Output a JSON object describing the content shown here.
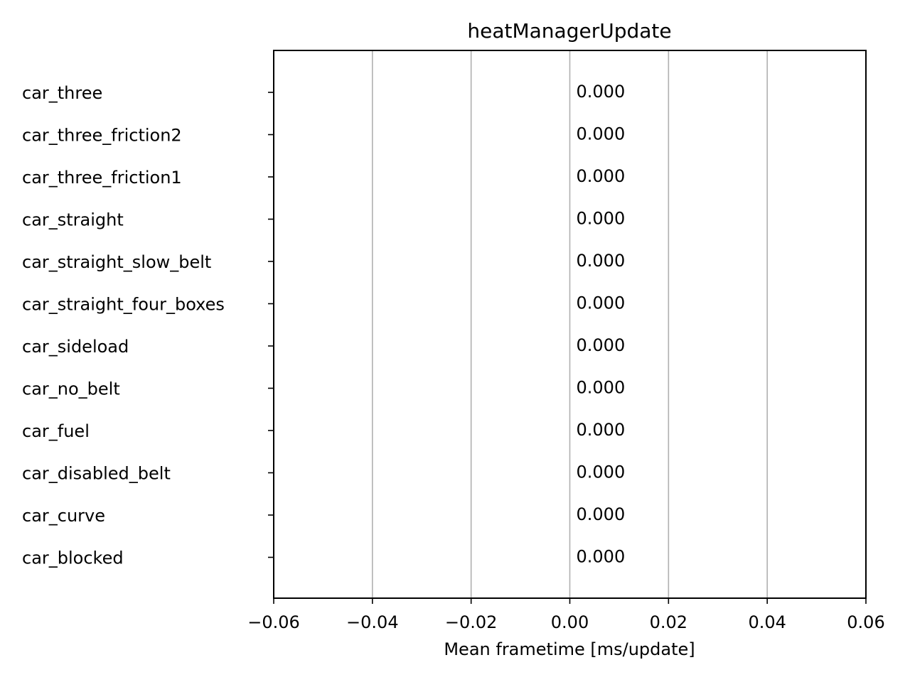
{
  "chart_data": {
    "type": "bar",
    "orientation": "horizontal",
    "title": "heatManagerUpdate",
    "xlabel": "Mean frametime [ms/update]",
    "ylabel": "",
    "xlim": [
      -0.06,
      0.06
    ],
    "x_ticks": [
      -0.06,
      -0.04,
      -0.02,
      0.0,
      0.02,
      0.04,
      0.06
    ],
    "x_tick_labels": [
      "−0.06",
      "−0.04",
      "−0.02",
      "0.00",
      "0.02",
      "0.04",
      "0.06"
    ],
    "grid": {
      "x": true,
      "y": false
    },
    "categories": [
      "car_three",
      "car_three_friction2",
      "car_three_friction1",
      "car_straight",
      "car_straight_slow_belt",
      "car_straight_four_boxes",
      "car_sideload",
      "car_no_belt",
      "car_fuel",
      "car_disabled_belt",
      "car_curve",
      "car_blocked"
    ],
    "values": [
      0,
      0,
      0,
      0,
      0,
      0,
      0,
      0,
      0,
      0,
      0,
      0
    ],
    "value_labels": [
      "0.000",
      "0.000",
      "0.000",
      "0.000",
      "0.000",
      "0.000",
      "0.000",
      "0.000",
      "0.000",
      "0.000",
      "0.000",
      "0.000"
    ],
    "colors": {
      "grid": "#b0b0b0",
      "axis": "#000000",
      "bar": "#1f77b4"
    }
  }
}
